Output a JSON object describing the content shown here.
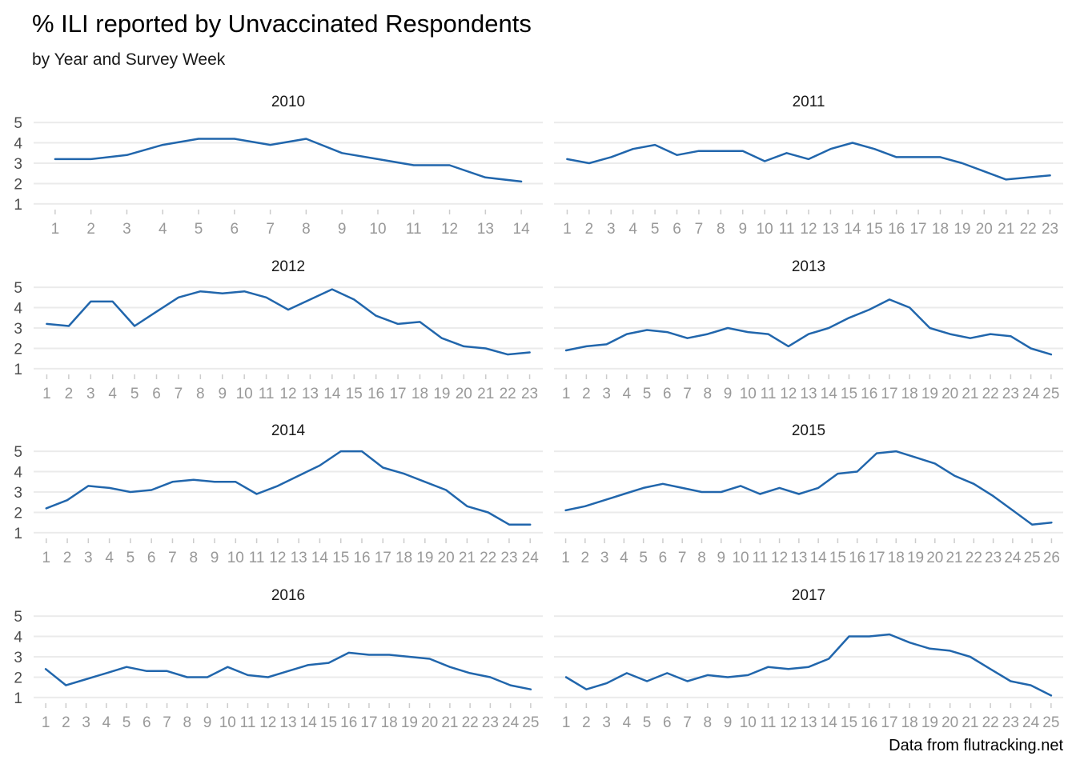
{
  "title": "% ILI reported by Unvaccinated Respondents",
  "subtitle": "by Year and Survey Week",
  "caption": "Data from flutracking.net",
  "colors": {
    "line": "#2166ac",
    "grid": "#ebebeb"
  },
  "chart_data": {
    "type": "line",
    "facet": "year",
    "ylim": [
      1,
      5
    ],
    "yticks": [
      1,
      2,
      3,
      4,
      5
    ],
    "grid": true,
    "panels": [
      {
        "label": "2010",
        "x": [
          1,
          2,
          3,
          4,
          5,
          6,
          7,
          8,
          9,
          10,
          11,
          12,
          13,
          14
        ],
        "values": [
          3.2,
          3.2,
          3.4,
          3.9,
          4.2,
          4.2,
          3.9,
          4.2,
          3.5,
          3.2,
          2.9,
          2.9,
          2.3,
          2.1
        ]
      },
      {
        "label": "2011",
        "x": [
          1,
          2,
          3,
          4,
          5,
          6,
          7,
          8,
          9,
          10,
          11,
          12,
          13,
          14,
          15,
          16,
          17,
          18,
          19,
          20,
          21,
          22,
          23
        ],
        "values": [
          3.2,
          3.0,
          3.3,
          3.7,
          3.9,
          3.4,
          3.6,
          3.6,
          3.6,
          3.1,
          3.5,
          3.2,
          3.7,
          4.0,
          3.7,
          3.3,
          3.3,
          3.3,
          3.0,
          2.6,
          2.2,
          2.3,
          2.4
        ]
      },
      {
        "label": "2012",
        "x": [
          1,
          2,
          3,
          4,
          5,
          6,
          7,
          8,
          9,
          10,
          11,
          12,
          13,
          14,
          15,
          16,
          17,
          18,
          19,
          20,
          21,
          22,
          23
        ],
        "values": [
          3.2,
          3.1,
          4.3,
          4.3,
          3.1,
          3.8,
          4.5,
          4.8,
          4.7,
          4.8,
          4.5,
          3.9,
          4.4,
          4.9,
          4.4,
          3.6,
          3.2,
          3.3,
          2.5,
          2.1,
          2.0,
          1.7,
          1.8
        ]
      },
      {
        "label": "2013",
        "x": [
          1,
          2,
          3,
          4,
          5,
          6,
          7,
          8,
          9,
          10,
          11,
          12,
          13,
          14,
          15,
          16,
          17,
          18,
          19,
          20,
          21,
          22,
          23,
          24,
          25
        ],
        "values": [
          1.9,
          2.1,
          2.2,
          2.7,
          2.9,
          2.8,
          2.5,
          2.7,
          3.0,
          2.8,
          2.7,
          2.1,
          2.7,
          3.0,
          3.5,
          3.9,
          4.4,
          4.0,
          3.0,
          2.7,
          2.5,
          2.7,
          2.6,
          2.0,
          1.7
        ]
      },
      {
        "label": "2014",
        "x": [
          1,
          2,
          3,
          4,
          5,
          6,
          7,
          8,
          9,
          10,
          11,
          12,
          13,
          14,
          15,
          16,
          17,
          18,
          19,
          20,
          21,
          22,
          23,
          24
        ],
        "values": [
          2.2,
          2.6,
          3.3,
          3.2,
          3.0,
          3.1,
          3.5,
          3.6,
          3.5,
          3.5,
          2.9,
          3.3,
          3.8,
          4.3,
          5.0,
          5.0,
          4.2,
          3.9,
          3.5,
          3.1,
          2.3,
          2.0,
          1.4,
          1.4
        ]
      },
      {
        "label": "2015",
        "x": [
          1,
          2,
          3,
          4,
          5,
          6,
          7,
          8,
          9,
          10,
          11,
          12,
          13,
          14,
          15,
          16,
          17,
          18,
          19,
          20,
          21,
          22,
          23,
          24,
          25,
          26
        ],
        "values": [
          2.1,
          2.3,
          2.6,
          2.9,
          3.2,
          3.4,
          3.2,
          3.0,
          3.0,
          3.3,
          2.9,
          3.2,
          2.9,
          3.2,
          3.9,
          4.0,
          4.9,
          5.0,
          4.7,
          4.4,
          3.8,
          3.4,
          2.8,
          2.1,
          1.4,
          1.5
        ]
      },
      {
        "label": "2016",
        "x": [
          1,
          2,
          3,
          4,
          5,
          6,
          7,
          8,
          9,
          10,
          11,
          12,
          13,
          14,
          15,
          16,
          17,
          18,
          19,
          20,
          21,
          22,
          23,
          24,
          25
        ],
        "values": [
          2.4,
          1.6,
          1.9,
          2.2,
          2.5,
          2.3,
          2.3,
          2.0,
          2.0,
          2.5,
          2.1,
          2.0,
          2.3,
          2.6,
          2.7,
          3.2,
          3.1,
          3.1,
          3.0,
          2.9,
          2.5,
          2.2,
          2.0,
          1.6,
          1.4
        ]
      },
      {
        "label": "2017",
        "x": [
          1,
          2,
          3,
          4,
          5,
          6,
          7,
          8,
          9,
          10,
          11,
          12,
          13,
          14,
          15,
          16,
          17,
          18,
          19,
          20,
          21,
          22,
          23,
          24,
          25
        ],
        "values": [
          2.0,
          1.4,
          1.7,
          2.2,
          1.8,
          2.2,
          1.8,
          2.1,
          2.0,
          2.1,
          2.5,
          2.4,
          2.5,
          2.9,
          4.0,
          4.0,
          4.1,
          3.7,
          3.4,
          3.3,
          3.0,
          2.4,
          1.8,
          1.6,
          1.1
        ]
      }
    ]
  }
}
